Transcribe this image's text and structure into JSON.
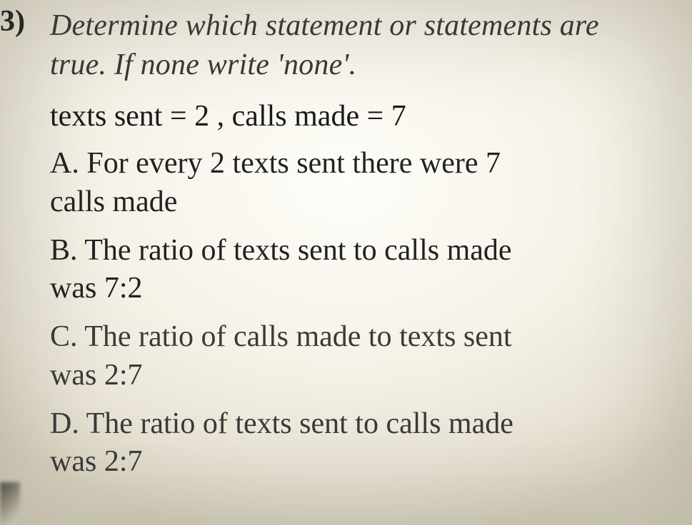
{
  "question": {
    "number": "3)",
    "prompt_line1": "Determine which statement or statements are",
    "prompt_line2": "true. If none write 'none'.",
    "given": "texts sent = 2 , calls made = 7",
    "choices": {
      "A": {
        "line1": "A. For every 2 texts sent there were 7",
        "line2": "calls made"
      },
      "B": {
        "line1": "B. The ratio of texts sent to calls made",
        "line2": "was 7:2"
      },
      "C": {
        "line1": "C. The ratio of calls made to texts sent",
        "line2": "was 2:7"
      },
      "D": {
        "line1": "D. The ratio of texts sent to calls made",
        "line2": "was 2:7"
      }
    }
  }
}
